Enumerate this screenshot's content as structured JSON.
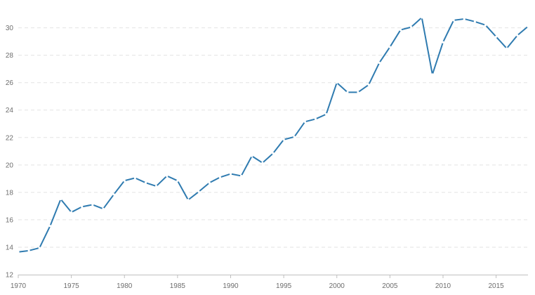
{
  "chart_data": {
    "type": "line",
    "title": "",
    "xlabel": "",
    "ylabel": "",
    "xlim": [
      1970,
      2018
    ],
    "ylim": [
      12,
      30.8
    ],
    "y_ticks": [
      12,
      14,
      16,
      18,
      20,
      22,
      24,
      26,
      28,
      30
    ],
    "x_ticks": [
      1970,
      1975,
      1980,
      1985,
      1990,
      1995,
      2000,
      2005,
      2010,
      2015
    ],
    "grid": true,
    "legend": "none",
    "color": "#2f7bb0",
    "series": [
      {
        "x": [
          1970,
          1971,
          1972,
          1973,
          1974,
          1975,
          1976,
          1977,
          1978,
          1979,
          1980,
          1981,
          1982,
          1983,
          1984,
          1985,
          1986,
          1987,
          1988,
          1989,
          1990,
          1991,
          1992,
          1993,
          1994,
          1995,
          1996,
          1997,
          1998,
          1999,
          2000,
          2001,
          2002,
          2003,
          2004,
          2005,
          2006,
          2007,
          2008,
          2009,
          2010,
          2011,
          2012,
          2013,
          2014,
          2015,
          2016,
          2017,
          2018
        ],
        "values": [
          13.65,
          13.75,
          13.95,
          15.55,
          17.5,
          16.55,
          16.95,
          17.1,
          16.8,
          17.85,
          18.85,
          19.05,
          18.7,
          18.45,
          19.2,
          18.85,
          17.45,
          18.05,
          18.7,
          19.1,
          19.35,
          19.2,
          20.65,
          20.15,
          20.85,
          21.85,
          22.05,
          23.15,
          23.35,
          23.7,
          26.0,
          25.3,
          25.3,
          25.85,
          27.45,
          28.6,
          29.85,
          30.05,
          30.75,
          26.6,
          28.95,
          30.55,
          30.65,
          30.45,
          30.2,
          29.35,
          28.5,
          29.45,
          30.1
        ]
      }
    ]
  }
}
